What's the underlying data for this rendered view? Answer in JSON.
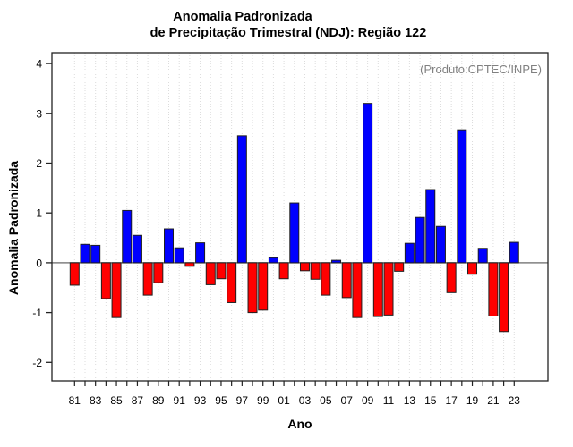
{
  "chart_data": {
    "type": "bar",
    "title": "Anomalia Padronizada de Precipitação Trimestral (NDJ): Região 122",
    "title_line1": "Anomalia Padronizada",
    "title_line2": "de Precipitação Trimestral (NDJ): Região 122",
    "annotation": "(Produto:CPTEC/INPE)",
    "xlabel": "Ano",
    "ylabel": "Anomalia Padronizada",
    "categories": [
      "81",
      "82",
      "83",
      "84",
      "85",
      "86",
      "87",
      "88",
      "89",
      "90",
      "91",
      "92",
      "93",
      "94",
      "95",
      "96",
      "97",
      "98",
      "99",
      "00",
      "01",
      "02",
      "03",
      "04",
      "05",
      "06",
      "07",
      "08",
      "09",
      "10",
      "11",
      "12",
      "13",
      "14",
      "15",
      "16",
      "17",
      "18",
      "19",
      "20",
      "21",
      "22",
      "23"
    ],
    "values": [
      -0.45,
      0.37,
      0.35,
      -0.72,
      -1.1,
      1.05,
      0.55,
      -0.65,
      -0.4,
      0.68,
      0.3,
      -0.07,
      0.4,
      -0.44,
      -0.32,
      -0.8,
      2.55,
      -1.0,
      -0.95,
      0.1,
      -0.32,
      1.2,
      -0.16,
      -0.33,
      -0.65,
      0.05,
      -0.7,
      -1.1,
      3.2,
      -1.08,
      -1.05,
      -0.17,
      0.39,
      0.91,
      1.47,
      0.73,
      -0.6,
      2.67,
      -0.23,
      0.29,
      -1.07,
      -1.38,
      0.41
    ],
    "yticks": [
      -2,
      -1,
      0,
      1,
      2,
      3,
      4
    ],
    "ylim": [
      -2.37,
      4.22
    ],
    "x_tick_label_step": 2,
    "grid": "vertical-dotted",
    "legend": "none",
    "positive_color": "#0000FF",
    "negative_color": "#FF0000",
    "bar_border_color": "#1f1f1f",
    "zero_line_color": "#808080",
    "gridline_color": "#dcdcdc",
    "frame_color": "#222222",
    "annotation_color": "#808080"
  }
}
